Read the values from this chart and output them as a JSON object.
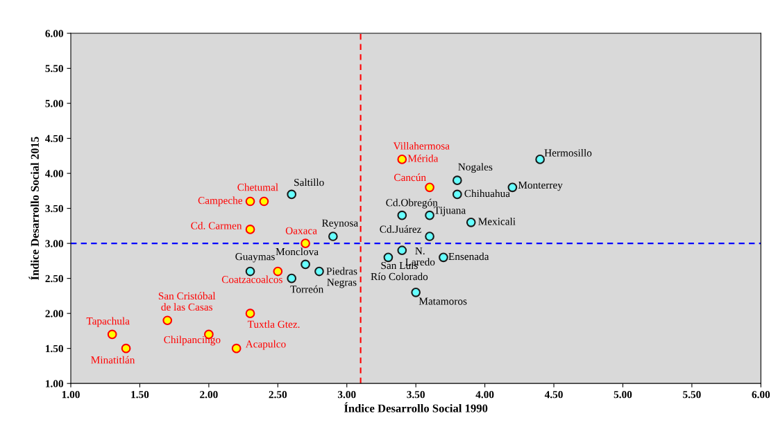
{
  "chart_data": {
    "type": "scatter",
    "xlabel": "Índice Desarrollo Social 1990",
    "ylabel": "Índice Desarrollo Social 2015",
    "xlim": [
      1,
      6
    ],
    "ylim": [
      1,
      6
    ],
    "xticks": [
      {
        "value": 1,
        "label": "1.00"
      },
      {
        "value": 1.5,
        "label": "1.50"
      },
      {
        "value": 2,
        "label": "2.00"
      },
      {
        "value": 2.5,
        "label": "2.50"
      },
      {
        "value": 3,
        "label": "3.00"
      },
      {
        "value": 3.5,
        "label": "3.50"
      },
      {
        "value": 4,
        "label": "4.00"
      },
      {
        "value": 4.5,
        "label": "4.50"
      },
      {
        "value": 5,
        "label": "5.00"
      },
      {
        "value": 5.5,
        "label": "5.50"
      },
      {
        "value": 6,
        "label": "6.00"
      }
    ],
    "yticks": [
      {
        "value": 1,
        "label": "1.00"
      },
      {
        "value": 1.5,
        "label": "1.50"
      },
      {
        "value": 2,
        "label": "2.00"
      },
      {
        "value": 2.5,
        "label": "2.50"
      },
      {
        "value": 3,
        "label": "3.00"
      },
      {
        "value": 3.5,
        "label": "3.50"
      },
      {
        "value": 4,
        "label": "4.00"
      },
      {
        "value": 4.5,
        "label": "4.50"
      },
      {
        "value": 5,
        "label": "5.00"
      },
      {
        "value": 5.5,
        "label": "5.50"
      },
      {
        "value": 6,
        "label": "6.00"
      }
    ],
    "marker": "circle",
    "grid": false,
    "legend": false,
    "series": [
      {
        "color": "#ffff00",
        "x": [
          3.4,
          3.6,
          2.4,
          2.3,
          2.3,
          2.7,
          2.5,
          1.7,
          2.3,
          1.3,
          1.4,
          2.0,
          2.2
        ],
        "values": [
          4.2,
          3.8,
          3.6,
          3.6,
          3.2,
          3.0,
          2.6,
          1.9,
          2.0,
          1.7,
          1.5,
          1.7,
          1.5
        ]
      },
      {
        "color": "#66ffff",
        "x": [
          2.6,
          2.9,
          2.7,
          2.3,
          2.8,
          2.6,
          4.4,
          3.8,
          3.8,
          4.2,
          3.4,
          3.6,
          3.9,
          3.6,
          3.4,
          3.3,
          3.7,
          3.5
        ],
        "values": [
          3.7,
          3.1,
          2.7,
          2.6,
          2.6,
          2.5,
          4.2,
          3.9,
          3.7,
          3.8,
          3.4,
          3.4,
          3.3,
          3.1,
          2.9,
          2.8,
          2.8,
          2.3
        ]
      }
    ],
    "ref_lines": [
      {
        "axis": "x",
        "value": 3.1,
        "color": "#ff0000",
        "line_style": "dashed"
      },
      {
        "axis": "y",
        "value": 3.0,
        "color": "#0000ff",
        "line_style": "dashed"
      }
    ],
    "annotations": [
      {
        "text": "Villahermosa",
        "x": 3.4,
        "y": 4.2
      },
      {
        "text": "Mérida",
        "x": 3.4,
        "y": 4.2
      },
      {
        "text": "Cancún",
        "x": 3.6,
        "y": 3.8
      },
      {
        "text": "Chetumal",
        "x": 2.4,
        "y": 3.6
      },
      {
        "text": "Campeche",
        "x": 2.3,
        "y": 3.6
      },
      {
        "text": "Cd. Carmen",
        "x": 2.3,
        "y": 3.2
      },
      {
        "text": "Oaxaca",
        "x": 2.7,
        "y": 3.0
      },
      {
        "text": "Coatzacoalcos",
        "x": 2.5,
        "y": 2.6
      },
      {
        "text": "San Cristóbal\nde las Casas",
        "x": 1.7,
        "y": 1.9
      },
      {
        "text": "Tuxtla Gtez.",
        "x": 2.3,
        "y": 2.0
      },
      {
        "text": "Tapachula",
        "x": 1.3,
        "y": 1.7
      },
      {
        "text": "Minatitlán",
        "x": 1.4,
        "y": 1.5
      },
      {
        "text": "Chilpancingo",
        "x": 2.0,
        "y": 1.7
      },
      {
        "text": "Acapulco",
        "x": 2.2,
        "y": 1.5
      },
      {
        "text": "Saltillo",
        "x": 2.6,
        "y": 3.7
      },
      {
        "text": "Reynosa",
        "x": 2.9,
        "y": 3.1
      },
      {
        "text": "Monclova",
        "x": 2.7,
        "y": 2.7
      },
      {
        "text": "Guaymas",
        "x": 2.3,
        "y": 2.6
      },
      {
        "text": "Piedras\nNegras",
        "x": 2.8,
        "y": 2.6
      },
      {
        "text": "Torreón",
        "x": 2.6,
        "y": 2.5
      },
      {
        "text": "Hermosillo",
        "x": 4.4,
        "y": 4.2
      },
      {
        "text": "Nogales",
        "x": 3.8,
        "y": 3.9
      },
      {
        "text": "Chihuahua",
        "x": 3.8,
        "y": 3.7
      },
      {
        "text": "Monterrey",
        "x": 4.2,
        "y": 3.8
      },
      {
        "text": "Cd.Obregón",
        "x": 3.4,
        "y": 3.4
      },
      {
        "text": "Tijuana",
        "x": 3.6,
        "y": 3.4
      },
      {
        "text": "Mexicali",
        "x": 3.9,
        "y": 3.3
      },
      {
        "text": "Cd.Juárez",
        "x": 3.6,
        "y": 3.1
      },
      {
        "text": "N.\nLaredo",
        "x": 3.4,
        "y": 2.9
      },
      {
        "text": "San Luis\nRío Colorado",
        "x": 3.3,
        "y": 2.8
      },
      {
        "text": "Ensenada",
        "x": 3.7,
        "y": 2.8
      },
      {
        "text": "Matamoros",
        "x": 3.5,
        "y": 2.3
      }
    ]
  }
}
